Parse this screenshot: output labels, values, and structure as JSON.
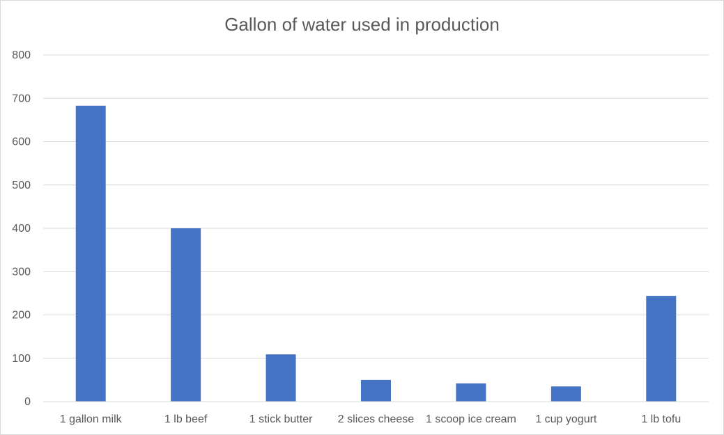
{
  "chart_data": {
    "type": "bar",
    "title": "Gallon of water used in production",
    "xlabel": "",
    "ylabel": "",
    "categories": [
      "1 gallon milk",
      "1 lb beef",
      "1 stick butter",
      "2 slices cheese",
      "1 scoop ice cream",
      "1 cup yogurt",
      "1 lb tofu"
    ],
    "values": [
      683,
      400,
      109,
      50,
      42,
      35,
      244
    ],
    "ylim": [
      0,
      800
    ],
    "yticks": [
      "0",
      "100",
      "200",
      "300",
      "400",
      "500",
      "600",
      "700",
      "800"
    ],
    "grid": true,
    "legend": "none",
    "bar_color": "#4472c4",
    "grid_color": "#d9d9d9"
  }
}
